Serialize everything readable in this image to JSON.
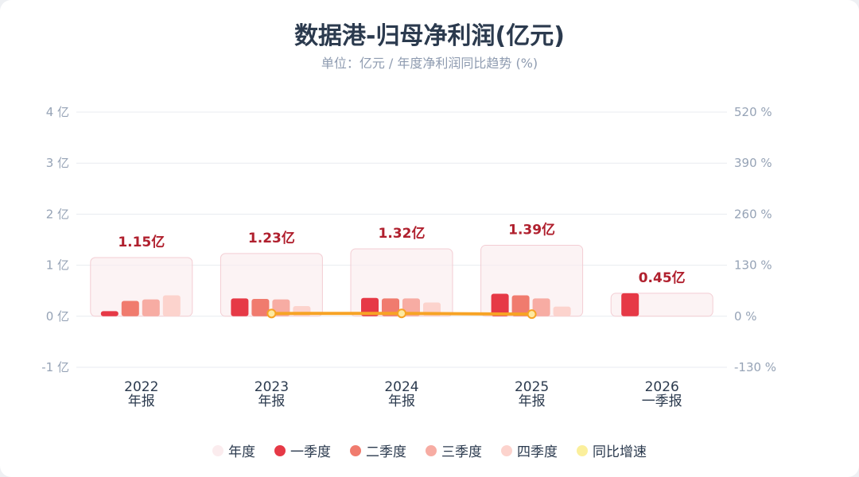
{
  "chart_data": {
    "type": "bar",
    "title": "数据港-归母净利润(亿元)",
    "subtitle": "单位：亿元 / 年度净利润同比趋势 (%)",
    "categories": [
      {
        "year": "2022",
        "period": "年报"
      },
      {
        "year": "2023",
        "period": "年报"
      },
      {
        "year": "2024",
        "period": "年报"
      },
      {
        "year": "2025",
        "period": "年报"
      },
      {
        "year": "2026",
        "period": "一季报"
      }
    ],
    "annual": [
      1.15,
      1.23,
      1.32,
      1.39,
      0.45
    ],
    "annual_labels": [
      "1.15亿",
      "1.23亿",
      "1.32亿",
      "1.39亿",
      "0.45亿"
    ],
    "series": [
      {
        "name": "年度",
        "color": "#fbecee",
        "values": [
          1.15,
          1.23,
          1.32,
          1.39,
          0.45
        ]
      },
      {
        "name": "一季度",
        "color": "#e63946",
        "values": [
          0.1,
          0.35,
          0.36,
          0.44,
          0.45
        ]
      },
      {
        "name": "二季度",
        "color": "#f07b6e",
        "values": [
          0.3,
          0.34,
          0.35,
          0.41,
          null
        ]
      },
      {
        "name": "三季度",
        "color": "#f7aca3",
        "values": [
          0.33,
          0.33,
          0.35,
          0.35,
          null
        ]
      },
      {
        "name": "四季度",
        "color": "#fcd3cd",
        "values": [
          0.41,
          0.2,
          0.27,
          0.19,
          null
        ]
      },
      {
        "name": "同比增速",
        "color": "#f7a325",
        "values": [
          null,
          7.0,
          7.3,
          5.3,
          null
        ]
      }
    ],
    "yoy_legend_color": "#fbef9c",
    "y_left": {
      "min": -1,
      "max": 4,
      "step": 1,
      "ticks": [
        "-1 亿",
        "0 亿",
        "1 亿",
        "2 亿",
        "3 亿",
        "4 亿"
      ]
    },
    "y_right": {
      "min": -130,
      "max": 520,
      "ticks": [
        "-130 %",
        "0 %",
        "130 %",
        "260 %",
        "390 %",
        "520 %"
      ]
    },
    "grid": true,
    "legend_position": "bottom"
  }
}
